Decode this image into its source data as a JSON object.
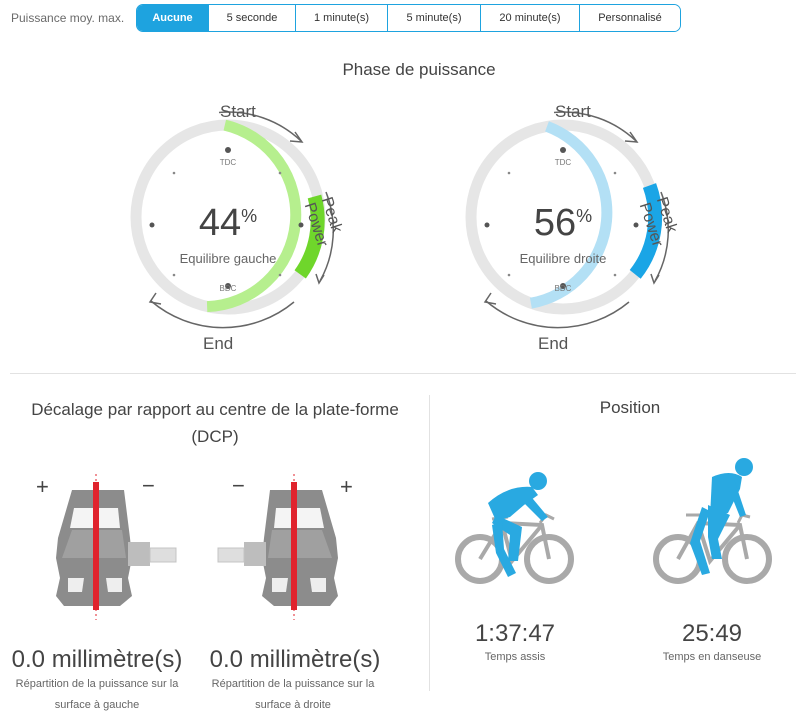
{
  "filter": {
    "label": "Puissance moy. max.",
    "options": [
      "Aucune",
      "5 seconde",
      "1 minute(s)",
      "5 minute(s)",
      "20 minute(s)",
      "Personnalisé"
    ],
    "selected": "Aucune"
  },
  "power_phase": {
    "title": "Phase de puissance",
    "left": {
      "value": "44",
      "unit": "%",
      "label": "Equilibre gauche",
      "tdc": "TDC",
      "bdc": "BDC",
      "start": "Start",
      "end": "End",
      "peak": "Peak Power"
    },
    "right": {
      "value": "56",
      "unit": "%",
      "label": "Equilibre droite",
      "tdc": "TDC",
      "bdc": "BDC",
      "start": "Start",
      "end": "End",
      "peak": "Peak Power"
    }
  },
  "dcp": {
    "title": "Décalage par rapport au centre de la plate-forme (DCP)",
    "left": {
      "value": "0.0 millimètre(s)",
      "desc_line1": "Répartition de la puissance sur la",
      "desc_line2": "surface à gauche",
      "plus": "+",
      "minus": "−"
    },
    "right": {
      "value": "0.0 millimètre(s)",
      "desc_line1": "Répartition de la puissance sur la",
      "desc_line2": "surface à droite",
      "plus": "+",
      "minus": "−"
    }
  },
  "position": {
    "title": "Position",
    "seated": {
      "time": "1:37:47",
      "label": "Temps assis"
    },
    "standing": {
      "time": "25:49",
      "label": "Temps en danseuse"
    }
  },
  "colors": {
    "accent": "#1ea3df",
    "left_arc": "#b6ef8e",
    "left_peak": "#6fd62b",
    "right_arc": "#b3e0f5",
    "right_peak": "#1aa5e6",
    "track": "#e6e6e6",
    "rider": "#29a9e1",
    "bike": "#a9a9a9",
    "pedal": "#8c8c8c",
    "pedal_line": "#e0232d"
  }
}
